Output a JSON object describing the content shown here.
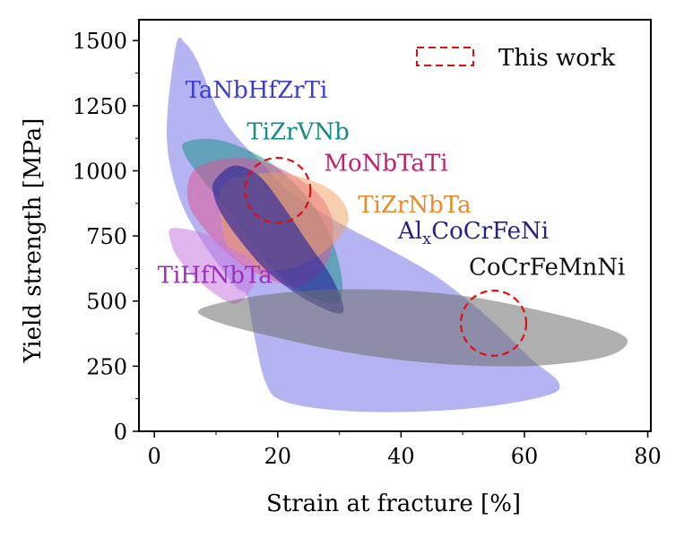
{
  "chart_data": {
    "type": "area",
    "title": "",
    "xlabel": "Strain at fracture [%]",
    "ylabel": "Yield strength [MPa]",
    "xlim": [
      -2.5,
      80.5
    ],
    "ylim": [
      0,
      1580
    ],
    "xticks": [
      0,
      20,
      40,
      60,
      80
    ],
    "yticks": [
      0,
      250,
      500,
      750,
      1000,
      1250,
      1500
    ],
    "grid": false,
    "legend": {
      "position": "top-right",
      "label": "This work",
      "style": "dashed-red-box"
    },
    "regions": [
      {
        "name": "TaNbHfZrTi",
        "color": "#3b3bd6",
        "fill": "#4d4de0",
        "opacity": 0.42,
        "label_at": [
          5.0,
          1280
        ],
        "polygon": [
          [
            3.5,
            1480
          ],
          [
            5,
            1490
          ],
          [
            7,
            1420
          ],
          [
            10,
            1250
          ],
          [
            13,
            1140
          ],
          [
            17,
            1040
          ],
          [
            22,
            920
          ],
          [
            30,
            800
          ],
          [
            38,
            700
          ],
          [
            46,
            590
          ],
          [
            54,
            440
          ],
          [
            61,
            280
          ],
          [
            65.5,
            190
          ],
          [
            64,
            140
          ],
          [
            54,
            95
          ],
          [
            42,
            75
          ],
          [
            30,
            80
          ],
          [
            21,
            115
          ],
          [
            18,
            190
          ],
          [
            16,
            390
          ],
          [
            15,
            520
          ],
          [
            13,
            560
          ],
          [
            8,
            720
          ],
          [
            4,
            900
          ],
          [
            2,
            1140
          ]
        ]
      },
      {
        "name": "TiZrVNb",
        "color": "#148a8a",
        "fill": "#1f8f8f",
        "opacity": 0.55,
        "label_at": [
          15.0,
          1120
        ],
        "polygon": [
          [
            5,
            1110
          ],
          [
            10,
            1120
          ],
          [
            16,
            1070
          ],
          [
            21,
            990
          ],
          [
            26,
            860
          ],
          [
            29,
            720
          ],
          [
            30.5,
            560
          ],
          [
            29,
            490
          ],
          [
            22,
            560
          ],
          [
            16,
            720
          ],
          [
            12,
            850
          ],
          [
            8,
            960
          ],
          [
            5,
            1060
          ]
        ]
      },
      {
        "name": "MoNbTaTi",
        "color": "#c71e6b",
        "fill": "#e0508f",
        "opacity": 0.5,
        "label_at": [
          27.5,
          1000
        ],
        "polygon": [
          [
            6,
            990
          ],
          [
            10,
            1040
          ],
          [
            16,
            1045
          ],
          [
            22,
            990
          ],
          [
            27,
            900
          ],
          [
            29,
            790
          ],
          [
            28,
            650
          ],
          [
            24,
            560
          ],
          [
            19,
            580
          ],
          [
            13,
            660
          ],
          [
            8,
            780
          ],
          [
            5.5,
            880
          ]
        ]
      },
      {
        "name": "TiZrNbTa",
        "color": "#e8892a",
        "fill": "#f0a060",
        "opacity": 0.5,
        "label_at": [
          33.0,
          840
        ],
        "polygon": [
          [
            11,
            940
          ],
          [
            17,
            990
          ],
          [
            23,
            980
          ],
          [
            29,
            920
          ],
          [
            31.5,
            820
          ],
          [
            29,
            720
          ],
          [
            24,
            640
          ],
          [
            18,
            620
          ],
          [
            13,
            670
          ],
          [
            11,
            780
          ]
        ]
      },
      {
        "name": "Al_xCoCrFeNi",
        "color": "#22228c",
        "fill": "#2a2a9a",
        "opacity": 0.65,
        "label_at": [
          39.5,
          740
        ],
        "polygon": [
          [
            10,
            970
          ],
          [
            13,
            1020
          ],
          [
            17,
            980
          ],
          [
            21,
            860
          ],
          [
            25,
            720
          ],
          [
            29,
            580
          ],
          [
            30.5,
            455
          ],
          [
            25,
            500
          ],
          [
            19,
            600
          ],
          [
            15,
            700
          ],
          [
            11,
            830
          ],
          [
            9.5,
            920
          ]
        ]
      },
      {
        "name": "TiHfNbTa",
        "color": "#9b2fc0",
        "fill": "#c87ae0",
        "opacity": 0.55,
        "label_at": [
          0.5,
          570
        ],
        "polygon": [
          [
            3,
            780
          ],
          [
            8,
            760
          ],
          [
            12,
            710
          ],
          [
            16,
            650
          ],
          [
            16,
            560
          ],
          [
            13,
            490
          ],
          [
            8,
            560
          ],
          [
            4,
            660
          ],
          [
            2.5,
            740
          ]
        ]
      },
      {
        "name": "CoCrFeMnNi",
        "color": "#111111",
        "fill": "#6e6e6e",
        "opacity": 0.55,
        "label_at": [
          51.0,
          600
        ],
        "polygon": [
          [
            8,
            475
          ],
          [
            20,
            530
          ],
          [
            35,
            545
          ],
          [
            50,
            520
          ],
          [
            65,
            450
          ],
          [
            75,
            380
          ],
          [
            76.5,
            330
          ],
          [
            72,
            280
          ],
          [
            60,
            250
          ],
          [
            46,
            260
          ],
          [
            32,
            300
          ],
          [
            18,
            370
          ],
          [
            9,
            430
          ]
        ]
      }
    ],
    "this_work": [
      {
        "cx": 20.0,
        "cy": 925,
        "rx": 5.3,
        "ry": 125
      },
      {
        "cx": 55.0,
        "cy": 415,
        "rx": 5.3,
        "ry": 125
      }
    ]
  }
}
